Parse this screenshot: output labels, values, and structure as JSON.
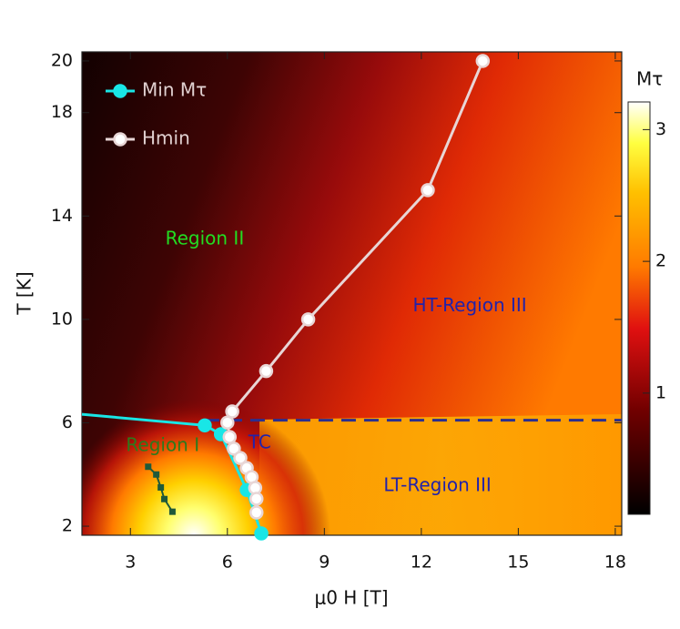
{
  "chart_data": {
    "type": "line",
    "xlabel": "μ0 H [T]",
    "ylabel": "T [K]",
    "xlim": [
      1.5,
      18.2
    ],
    "ylim": [
      1.65,
      20.35
    ],
    "xticks": [
      3,
      6,
      9,
      12,
      15,
      18
    ],
    "yticks": [
      2,
      6,
      10,
      14,
      18,
      20
    ],
    "colorbar": {
      "label": "Mτ",
      "lim": [
        0.08,
        3.21
      ],
      "ticks": [
        1,
        2,
        3
      ]
    },
    "tc_line": {
      "value": 6.1,
      "from": 5.3,
      "color": "#2b2f8f"
    },
    "annotations": [
      {
        "text": "Region II",
        "x": 5.3,
        "y": 13.1,
        "color": "#22dd22"
      },
      {
        "text": "HT-Region III",
        "x": 13.5,
        "y": 10.5,
        "color": "#2222aa"
      },
      {
        "text": "Region I",
        "x": 4.0,
        "y": 5.1,
        "color": "#2c7a1c"
      },
      {
        "text": "LT-Region III",
        "x": 12.5,
        "y": 3.55,
        "color": "#2222aa"
      },
      {
        "text": "TC",
        "x": 7.0,
        "y": 5.2,
        "color": "#2222aa"
      }
    ],
    "series": [
      {
        "name": "Min Mτ",
        "color": "#19e6e6",
        "x": [
          1.5,
          5.3,
          5.8,
          6.6,
          7.05
        ],
        "values": [
          6.33,
          5.9,
          5.56,
          3.4,
          1.72
        ]
      },
      {
        "name": "Hmin",
        "color": "#e8d6d6",
        "x": [
          13.9,
          12.2,
          8.5,
          7.2,
          6.15,
          6.0,
          6.07,
          6.2,
          6.4,
          6.6,
          6.75,
          6.86,
          6.9,
          6.9
        ],
        "values": [
          20.0,
          15.0,
          10.0,
          8.0,
          6.44,
          6.01,
          5.45,
          5.0,
          4.64,
          4.25,
          3.9,
          3.48,
          3.06,
          2.53
        ]
      },
      {
        "color": "#1f5a3a",
        "x": [
          3.55,
          3.8,
          3.94,
          4.05,
          4.3
        ],
        "values": [
          4.3,
          4.0,
          3.5,
          3.05,
          2.56
        ]
      }
    ]
  }
}
